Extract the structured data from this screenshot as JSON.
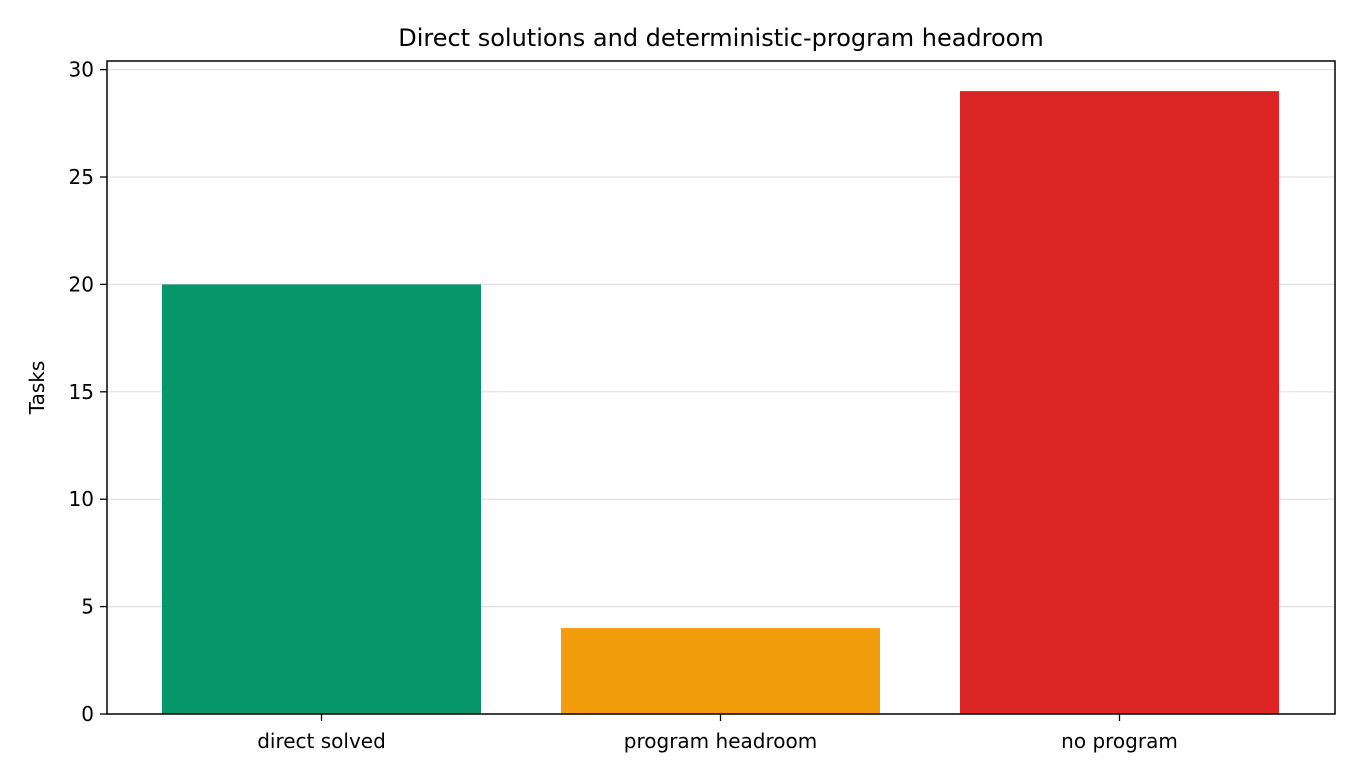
{
  "chart_data": {
    "type": "bar",
    "title": "Direct solutions and deterministic-program headroom",
    "xlabel": "",
    "ylabel": "Tasks",
    "categories": [
      "direct solved",
      "program headroom",
      "no program"
    ],
    "values": [
      20,
      4,
      29
    ],
    "colors": [
      "#079669",
      "#f29e0c",
      "#dc2626"
    ],
    "ylim": [
      0,
      30.4
    ],
    "yticks": [
      0,
      5,
      10,
      15,
      20,
      25,
      30
    ],
    "grid": "horizontal",
    "legend": "none"
  }
}
